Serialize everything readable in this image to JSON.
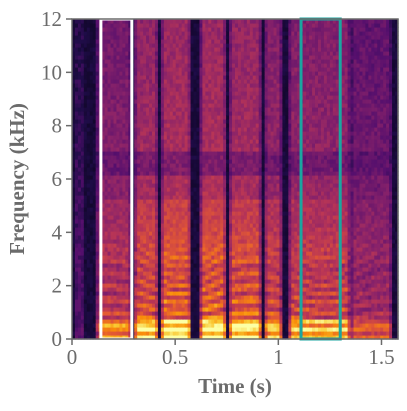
{
  "chart_data": {
    "type": "heatmap",
    "subtype": "spectrogram",
    "xlabel": "Time (s)",
    "ylabel": "Frequency (kHz)",
    "xlim": [
      0,
      1.58
    ],
    "ylim": [
      0,
      12
    ],
    "x_ticks": [
      0,
      0.5,
      1,
      1.5
    ],
    "x_tick_labels": [
      "0",
      "0.5",
      "1",
      "1.5"
    ],
    "y_ticks": [
      0,
      2,
      4,
      6,
      8,
      10,
      12
    ],
    "y_tick_labels": [
      "0",
      "2",
      "4",
      "6",
      "8",
      "10",
      "12"
    ],
    "colormap": "inferno",
    "colors": {
      "axis": "#6b6b6b",
      "highlight_1": "#ffffff",
      "highlight_2": "#1aa6a0"
    },
    "highlights": [
      {
        "x_start": 0.14,
        "x_end": 0.29,
        "y_start": 0,
        "y_end": 12,
        "color": "#ffffff"
      },
      {
        "x_start": 1.11,
        "x_end": 1.3,
        "y_start": 0,
        "y_end": 12,
        "color": "#1aa6a0"
      }
    ],
    "segments": [
      {
        "x_start": 0.02,
        "x_end": 0.06,
        "energy": 0.05
      },
      {
        "x_start": 0.12,
        "x_end": 0.29,
        "energy": 0.6
      },
      {
        "x_start": 0.3,
        "x_end": 0.42,
        "energy": 0.82
      },
      {
        "x_start": 0.43,
        "x_end": 0.58,
        "energy": 0.9
      },
      {
        "x_start": 0.62,
        "x_end": 0.75,
        "energy": 0.9
      },
      {
        "x_start": 0.76,
        "x_end": 0.92,
        "energy": 0.85
      },
      {
        "x_start": 0.93,
        "x_end": 1.02,
        "energy": 0.72
      },
      {
        "x_start": 1.05,
        "x_end": 1.35,
        "energy": 0.7
      },
      {
        "x_start": 1.35,
        "x_end": 1.55,
        "energy": 0.45
      }
    ]
  }
}
